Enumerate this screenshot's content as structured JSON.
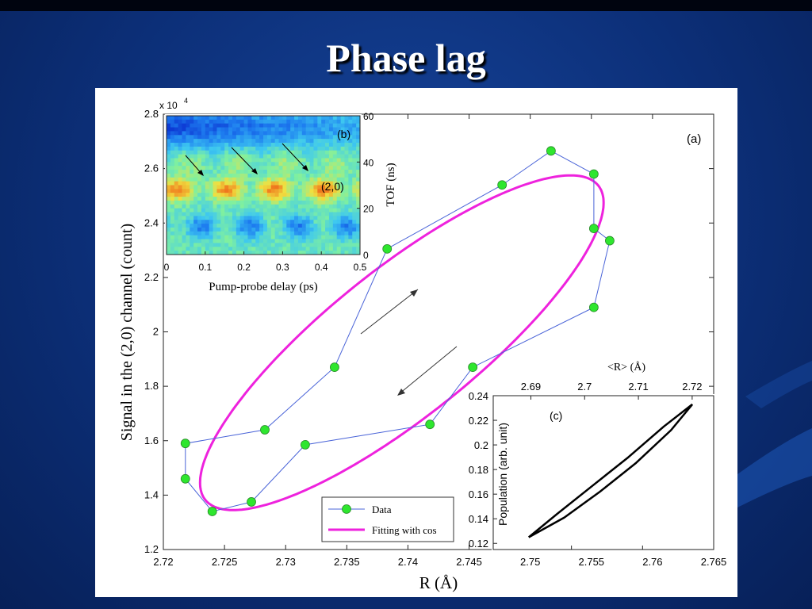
{
  "slide": {
    "title": "Phase lag"
  },
  "chart_data": [
    {
      "id": "a",
      "type": "scatter",
      "panel_label": "(a)",
      "xlabel": "R (Å)",
      "ylabel": "Signal in the (2,0) channel (count)",
      "y_multiplier_label": "x 10",
      "y_multiplier_exp": "4",
      "xlim": [
        2.72,
        2.765
      ],
      "ylim": [
        1.2,
        2.8
      ],
      "xticks": [
        "2.72",
        "2.725",
        "2.73",
        "2.735",
        "2.74",
        "2.745",
        "2.75",
        "2.755",
        "2.76",
        "2.765"
      ],
      "yticks": [
        "1.2",
        "1.4",
        "1.6",
        "1.8",
        "2",
        "2.2",
        "2.4",
        "2.6",
        "2.8"
      ],
      "legend": {
        "position": "bottom-center",
        "entries": [
          "Data",
          "Fitting with cos"
        ]
      },
      "colors": {
        "data_line": "#4a64d8",
        "data_marker": "#2ee62e",
        "fit": "#ee22dd"
      },
      "series": [
        {
          "name": "Data",
          "x": [
            2.7383,
            2.7477,
            2.7517,
            2.7552,
            2.7552,
            2.7565,
            2.7552,
            2.7453,
            2.7418,
            2.7316,
            2.7272,
            2.724,
            2.7218,
            2.7218,
            2.7283,
            2.734,
            2.7383
          ],
          "y": [
            2.305,
            2.54,
            2.665,
            2.58,
            2.38,
            2.335,
            2.09,
            1.87,
            1.66,
            1.585,
            1.375,
            1.34,
            1.46,
            1.59,
            1.64,
            1.87,
            2.305
          ]
        },
        {
          "name": "Fitting with cos",
          "type": "line",
          "x_center": 2.7395,
          "x_amplitude": 0.0165,
          "y_center": 1.96,
          "y_amplitude": 0.615,
          "phase_lag_rad": 0.58
        }
      ]
    },
    {
      "id": "b",
      "type": "heatmap",
      "panel_label": "(b)",
      "xlabel": "Pump-probe delay (ps)",
      "ylabel": "TOF (ns)",
      "xlim": [
        0,
        0.5
      ],
      "ylim": [
        0,
        60
      ],
      "xticks": [
        "0",
        "0.1",
        "0.2",
        "0.3",
        "0.4",
        "0.5"
      ],
      "yticks": [
        "0",
        "20",
        "40",
        "60"
      ],
      "annotation": "(2,0)",
      "colormap": [
        "#0a2fd0",
        "#1e7ef0",
        "#3ec8f0",
        "#7ff0a0",
        "#f0e040",
        "#f08020",
        "#e03010"
      ]
    },
    {
      "id": "c",
      "type": "line",
      "panel_label": "(c)",
      "ylabel": "Population (arb. unit)",
      "top_xlabel": "<R> (Å)",
      "xlim": [
        2.7495,
        2.765
      ],
      "ylim": [
        0.115,
        0.24
      ],
      "xticks": [
        "2.755",
        "2.76",
        "2.765"
      ],
      "top_xticks": [
        "2.69",
        "2.7",
        "2.71",
        "2.72"
      ],
      "yticks": [
        "0.12",
        "0.14",
        "0.16",
        "0.18",
        "0.2",
        "0.22",
        "0.24"
      ],
      "series": [
        {
          "name": "",
          "x": [
            2.752,
            2.7545,
            2.757,
            2.7595,
            2.762,
            2.7635
          ],
          "y": [
            0.125,
            0.141,
            0.162,
            0.185,
            0.212,
            0.233
          ]
        },
        {
          "name": "",
          "x": [
            2.7635,
            2.7615,
            2.759,
            2.7565,
            2.754,
            2.752
          ],
          "y": [
            0.233,
            0.215,
            0.19,
            0.167,
            0.144,
            0.125
          ]
        }
      ]
    }
  ]
}
